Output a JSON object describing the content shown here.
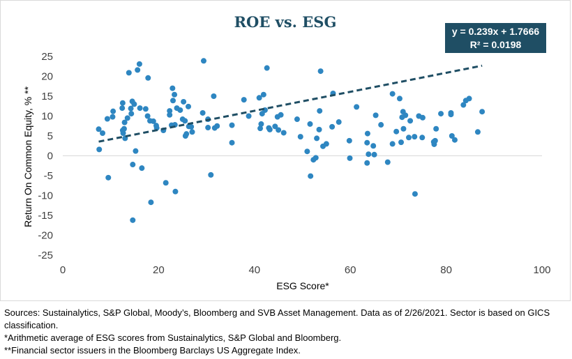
{
  "chart_data": {
    "type": "scatter",
    "title": "ROE vs. ESG",
    "xlabel": "ESG Score*",
    "ylabel": "Return On Common Equity, % **",
    "xlim": [
      0,
      100
    ],
    "ylim": [
      -25,
      25
    ],
    "x_ticks": [
      "0",
      "20",
      "40",
      "60",
      "80",
      "100"
    ],
    "y_ticks": [
      "25",
      "20",
      "15",
      "10",
      "5",
      "0",
      "-5",
      "-10",
      "-15",
      "-20",
      "-25"
    ],
    "grid": "none",
    "trendline": {
      "style": "dashed",
      "equation": "y = 0.239x + 1.7666",
      "r_squared": "R² = 0.0198",
      "slope": 0.239,
      "intercept": 1.7666,
      "x_range": [
        7.5,
        87.5
      ]
    },
    "marker_color": "#2e86c1",
    "trendline_color": "#1f4e64",
    "points": [
      [
        7.5,
        6.7
      ],
      [
        7.6,
        1.6
      ],
      [
        8.3,
        5.7
      ],
      [
        9.3,
        9.3
      ],
      [
        9.5,
        -5.5
      ],
      [
        10.4,
        9.8
      ],
      [
        10.5,
        11.2
      ],
      [
        12.5,
        13.3
      ],
      [
        12.4,
        12.0
      ],
      [
        12.5,
        6.4
      ],
      [
        12.6,
        5.7
      ],
      [
        12.8,
        6.8
      ],
      [
        12.9,
        8.4
      ],
      [
        13.0,
        4.4
      ],
      [
        13.5,
        9.5
      ],
      [
        13.8,
        20.9
      ],
      [
        14.2,
        11.9
      ],
      [
        14.3,
        10.6
      ],
      [
        14.5,
        13.7
      ],
      [
        14.6,
        -2.2
      ],
      [
        14.6,
        -16.2
      ],
      [
        14.9,
        13.0
      ],
      [
        15.2,
        1.2
      ],
      [
        15.6,
        21.6
      ],
      [
        16.0,
        23.1
      ],
      [
        16.1,
        12.0
      ],
      [
        16.5,
        -3.1
      ],
      [
        17.3,
        11.8
      ],
      [
        17.8,
        19.6
      ],
      [
        17.7,
        10.0
      ],
      [
        18.2,
        8.8
      ],
      [
        18.4,
        -11.7
      ],
      [
        18.9,
        8.7
      ],
      [
        19.5,
        7.6
      ],
      [
        19.6,
        7.0
      ],
      [
        21.0,
        6.4
      ],
      [
        21.5,
        -6.8
      ],
      [
        22.3,
        11.3
      ],
      [
        22.3,
        10.3
      ],
      [
        22.7,
        7.7
      ],
      [
        22.9,
        17.0
      ],
      [
        23.0,
        13.9
      ],
      [
        23.3,
        15.4
      ],
      [
        23.4,
        7.8
      ],
      [
        23.5,
        -9.0
      ],
      [
        23.8,
        12.0
      ],
      [
        24.5,
        11.5
      ],
      [
        25.0,
        9.2
      ],
      [
        25.2,
        13.6
      ],
      [
        25.5,
        8.8
      ],
      [
        25.6,
        5.0
      ],
      [
        25.8,
        5.5
      ],
      [
        26.2,
        12.4
      ],
      [
        26.3,
        7.4
      ],
      [
        26.8,
        7.3
      ],
      [
        27.0,
        6.0
      ],
      [
        29.2,
        10.8
      ],
      [
        29.4,
        23.9
      ],
      [
        30.3,
        7.1
      ],
      [
        30.3,
        9.2
      ],
      [
        30.9,
        -4.8
      ],
      [
        31.5,
        15.0
      ],
      [
        31.7,
        7.0
      ],
      [
        32.2,
        7.5
      ],
      [
        35.3,
        7.7
      ],
      [
        35.3,
        3.3
      ],
      [
        37.8,
        14.1
      ],
      [
        38.8,
        10.0
      ],
      [
        41.0,
        14.6
      ],
      [
        41.2,
        6.9
      ],
      [
        41.4,
        8.0
      ],
      [
        41.6,
        10.6
      ],
      [
        41.9,
        15.4
      ],
      [
        42.2,
        11.5
      ],
      [
        42.6,
        22.1
      ],
      [
        43.0,
        7.0
      ],
      [
        43.2,
        6.6
      ],
      [
        44.3,
        7.4
      ],
      [
        44.8,
        9.8
      ],
      [
        45.0,
        6.5
      ],
      [
        45.5,
        10.3
      ],
      [
        46.1,
        5.8
      ],
      [
        48.9,
        9.2
      ],
      [
        49.6,
        4.8
      ],
      [
        51.0,
        1.1
      ],
      [
        51.6,
        8.0
      ],
      [
        51.7,
        -5.1
      ],
      [
        52.3,
        -1.0
      ],
      [
        52.8,
        -0.5
      ],
      [
        53.0,
        4.4
      ],
      [
        53.5,
        6.6
      ],
      [
        53.6,
        11.3
      ],
      [
        53.8,
        21.3
      ],
      [
        54.3,
        2.4
      ],
      [
        55.0,
        3.0
      ],
      [
        56.2,
        7.3
      ],
      [
        56.4,
        15.7
      ],
      [
        57.6,
        8.5
      ],
      [
        59.8,
        3.8
      ],
      [
        59.9,
        -0.6
      ],
      [
        61.3,
        12.3
      ],
      [
        63.5,
        -1.8
      ],
      [
        63.6,
        5.6
      ],
      [
        63.5,
        3.3
      ],
      [
        63.8,
        0.4
      ],
      [
        64.8,
        2.5
      ],
      [
        65.0,
        0.3
      ],
      [
        65.3,
        10.2
      ],
      [
        66.4,
        7.8
      ],
      [
        67.8,
        -1.6
      ],
      [
        68.8,
        15.6
      ],
      [
        68.8,
        3.0
      ],
      [
        69.6,
        6.1
      ],
      [
        70.3,
        14.4
      ],
      [
        70.6,
        3.4
      ],
      [
        70.8,
        9.7
      ],
      [
        71.0,
        11.1
      ],
      [
        71.1,
        6.8
      ],
      [
        71.5,
        10.2
      ],
      [
        72.2,
        4.6
      ],
      [
        72.5,
        8.8
      ],
      [
        73.4,
        4.8
      ],
      [
        73.5,
        -9.6
      ],
      [
        74.3,
        10.0
      ],
      [
        75.0,
        4.6
      ],
      [
        75.1,
        9.6
      ],
      [
        77.4,
        3.5
      ],
      [
        77.5,
        2.9
      ],
      [
        77.7,
        3.8
      ],
      [
        77.9,
        6.8
      ],
      [
        78.9,
        10.6
      ],
      [
        81.0,
        10.8
      ],
      [
        81.0,
        10.4
      ],
      [
        81.2,
        5.0
      ],
      [
        81.8,
        4.0
      ],
      [
        83.6,
        12.8
      ],
      [
        84.1,
        13.9
      ],
      [
        84.8,
        14.4
      ],
      [
        86.6,
        6.0
      ],
      [
        87.5,
        11.1
      ]
    ]
  },
  "notes": {
    "sources": "Sources: Sustainalytics, S&P Global, Moody’s, Bloomberg and SVB Asset Management. Data as of 2/26/2021. Sector is based on GICS classification.",
    "footnote1": "*Arithmetic average of ESG scores from Sustainalytics, S&P Global and Bloomberg.",
    "footnote2": "**Financial sector issuers in the Bloomberg Barclays US Aggregate Index."
  }
}
